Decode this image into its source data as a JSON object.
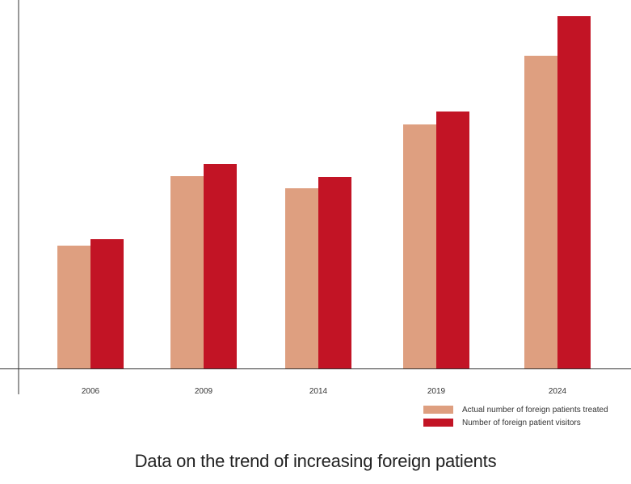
{
  "chart_data": {
    "type": "bar",
    "title": "Data on the trend of increasing foreign patients",
    "xlabel": "",
    "ylabel": "",
    "categories": [
      "2006",
      "2009",
      "2014",
      "2019",
      "2024"
    ],
    "series": [
      {
        "name": "Actual number of foreign patients treated",
        "color": "#DE9F80",
        "values": [
          152,
          238,
          223,
          302,
          387
        ]
      },
      {
        "name": "Number of foreign patient visitors",
        "color": "#C21425",
        "values": [
          160,
          253,
          237,
          318,
          436
        ]
      }
    ],
    "ylim": [
      0,
      456
    ],
    "grid": false,
    "y_tick_labels_shown": false,
    "legend_position": "bottom-right"
  }
}
